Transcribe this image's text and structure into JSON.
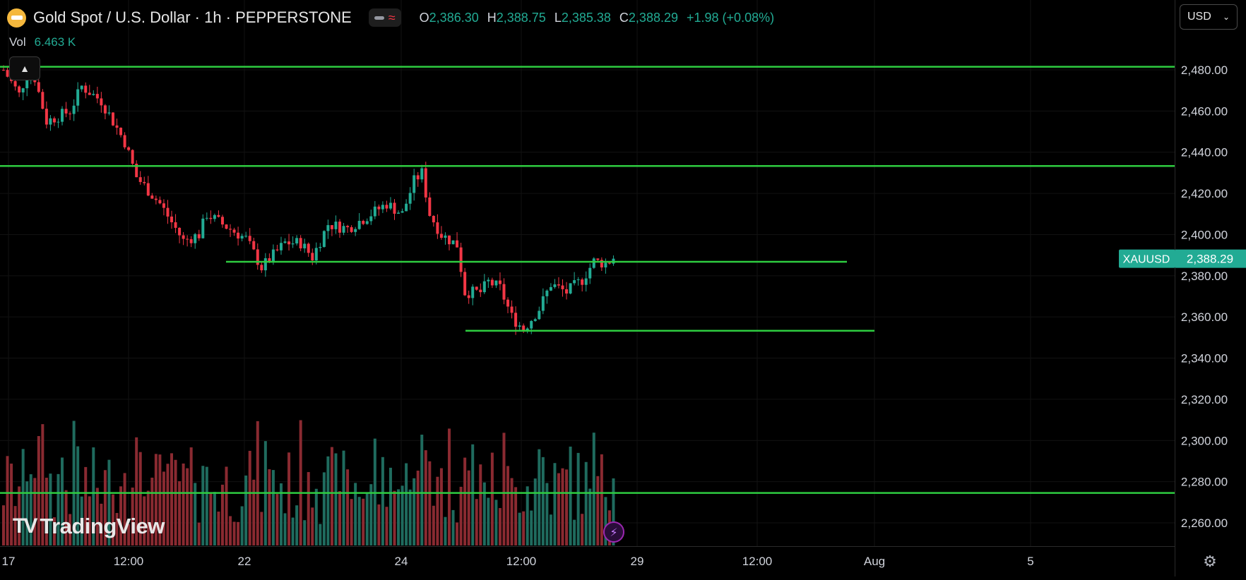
{
  "header": {
    "title": "Gold Spot / U.S. Dollar · 1h · PEPPERSTONE",
    "ohlc": [
      {
        "key": "O",
        "value": "2,386.30"
      },
      {
        "key": "H",
        "value": "2,388.75"
      },
      {
        "key": "L",
        "value": "2,385.38"
      },
      {
        "key": "C",
        "value": "2,388.29"
      }
    ],
    "change": "+1.98 (+0.08%)"
  },
  "volume": {
    "label": "Vol",
    "value": "6.463 K"
  },
  "currency": {
    "label": "USD",
    "icon": "chevron-down-icon"
  },
  "price_axis": {
    "ticks": [
      "2,480.00",
      "2,460.00",
      "2,440.00",
      "2,420.00",
      "2,400.00",
      "2,380.00",
      "2,360.00",
      "2,340.00",
      "2,320.00",
      "2,300.00",
      "2,280.00",
      "2,260.00"
    ]
  },
  "time_axis": {
    "ticks": [
      "17",
      "12:00",
      "22",
      "24",
      "12:00",
      "29",
      "12:00",
      "Aug",
      "5"
    ]
  },
  "last_price": {
    "symbol": "XAUUSD",
    "price": "2,388.29"
  },
  "branding": {
    "logo_text": "TradingView",
    "logo_mark": "TV"
  },
  "colors": {
    "up": "#22ab94",
    "down": "#f23645",
    "level_line": "#2ecc40",
    "last_price_bg": "#22ab94",
    "background": "#000000"
  },
  "chart_data": {
    "type": "candlestick",
    "symbol": "XAUUSD",
    "interval": "1h",
    "ylim": [
      2250,
      2490
    ],
    "horizontal_levels": [
      {
        "price": 2481.5
      },
      {
        "price": 2433.3
      },
      {
        "price": 2386.8
      },
      {
        "price": 2353.3
      },
      {
        "price": 2274.5
      }
    ],
    "anchors": [
      {
        "t": 0,
        "p": 2480
      },
      {
        "t": 4,
        "p": 2468
      },
      {
        "t": 7,
        "p": 2483
      },
      {
        "t": 11,
        "p": 2455
      },
      {
        "t": 17,
        "p": 2460
      },
      {
        "t": 20,
        "p": 2472
      },
      {
        "t": 25,
        "p": 2465
      },
      {
        "t": 31,
        "p": 2445
      },
      {
        "t": 34,
        "p": 2428
      },
      {
        "t": 40,
        "p": 2415
      },
      {
        "t": 46,
        "p": 2397
      },
      {
        "t": 50,
        "p": 2400
      },
      {
        "t": 52,
        "p": 2410
      },
      {
        "t": 56,
        "p": 2405
      },
      {
        "t": 62,
        "p": 2398
      },
      {
        "t": 66,
        "p": 2384
      },
      {
        "t": 72,
        "p": 2396
      },
      {
        "t": 76,
        "p": 2396
      },
      {
        "t": 79,
        "p": 2389
      },
      {
        "t": 83,
        "p": 2405
      },
      {
        "t": 88,
        "p": 2403
      },
      {
        "t": 94,
        "p": 2410
      },
      {
        "t": 98,
        "p": 2415
      },
      {
        "t": 102,
        "p": 2410
      },
      {
        "t": 105,
        "p": 2426
      },
      {
        "t": 107,
        "p": 2430
      },
      {
        "t": 109,
        "p": 2410
      },
      {
        "t": 112,
        "p": 2400
      },
      {
        "t": 116,
        "p": 2395
      },
      {
        "t": 118,
        "p": 2372
      },
      {
        "t": 122,
        "p": 2372
      },
      {
        "t": 124,
        "p": 2377
      },
      {
        "t": 127,
        "p": 2374
      },
      {
        "t": 130,
        "p": 2360
      },
      {
        "t": 133,
        "p": 2354
      },
      {
        "t": 137,
        "p": 2364
      },
      {
        "t": 140,
        "p": 2376
      },
      {
        "t": 144,
        "p": 2372
      },
      {
        "t": 148,
        "p": 2378
      },
      {
        "t": 151,
        "p": 2387
      },
      {
        "t": 154,
        "p": 2386
      },
      {
        "t": 156,
        "p": 2388.3
      }
    ]
  }
}
